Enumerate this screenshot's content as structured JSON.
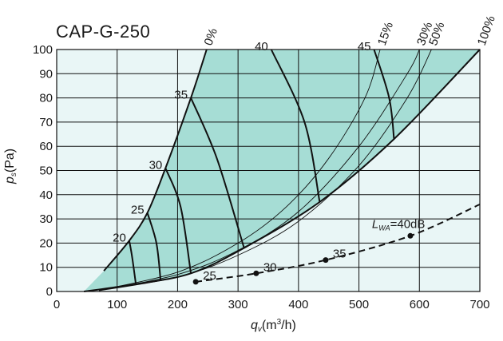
{
  "chart_data": {
    "type": "line",
    "title": "CAP-G-250",
    "xlabel": {
      "symbol": "q",
      "subscript": "v",
      "unit_pre": "(m",
      "unit_sup": "3",
      "unit_post": "/h)"
    },
    "ylabel": {
      "symbol": "p",
      "subscript": "s",
      "unit": "(Pa)"
    },
    "xlim": [
      0,
      700
    ],
    "ylim": [
      0,
      100
    ],
    "xticks": [
      "0",
      "100",
      "200",
      "300",
      "400",
      "500",
      "600",
      "700"
    ],
    "yticks": [
      "0",
      "10",
      "20",
      "30",
      "40",
      "50",
      "60",
      "70",
      "80",
      "90",
      "100"
    ],
    "grid": true,
    "colors": {
      "region": "#a6ddd5",
      "background": "#e9f6f6",
      "lines": "#111111"
    },
    "operating_region": {
      "upper_boundary": [
        [
          78,
          8.5
        ],
        [
          120,
          21
        ],
        [
          150,
          32.5
        ],
        [
          180,
          51
        ],
        [
          222,
          80
        ],
        [
          248,
          100
        ]
      ],
      "lower_boundary": [
        [
          45,
          0
        ],
        [
          80,
          1
        ],
        [
          130,
          3
        ],
        [
          170,
          4.8
        ],
        [
          222,
          7.5
        ],
        [
          310,
          18
        ],
        [
          435,
          37
        ],
        [
          558,
          63
        ],
        [
          700,
          100
        ]
      ]
    },
    "damper_curves": [
      {
        "label": "0%",
        "points": [
          [
            78,
            8.5
          ],
          [
            120,
            21
          ],
          [
            150,
            32.5
          ],
          [
            180,
            51
          ],
          [
            222,
            80
          ],
          [
            248,
            100
          ]
        ]
      },
      {
        "label": "15%",
        "points": [
          [
            70,
            0.5
          ],
          [
            200,
            8
          ],
          [
            300,
            20
          ],
          [
            380,
            35
          ],
          [
            450,
            55
          ],
          [
            510,
            80
          ],
          [
            535,
            100
          ]
        ]
      },
      {
        "label": "30%",
        "points": [
          [
            70,
            0.4
          ],
          [
            200,
            7
          ],
          [
            300,
            17
          ],
          [
            400,
            33
          ],
          [
            500,
            60
          ],
          [
            580,
            90
          ],
          [
            600,
            100
          ]
        ]
      },
      {
        "label": "50%",
        "points": [
          [
            70,
            0.3
          ],
          [
            200,
            6
          ],
          [
            300,
            15
          ],
          [
            400,
            29
          ],
          [
            500,
            52
          ],
          [
            580,
            80
          ],
          [
            620,
            100
          ]
        ]
      },
      {
        "label": "100%",
        "points": [
          [
            45,
            0
          ],
          [
            130,
            3
          ],
          [
            222,
            7.5
          ],
          [
            310,
            18
          ],
          [
            435,
            37
          ],
          [
            558,
            63
          ],
          [
            700,
            100
          ]
        ]
      }
    ],
    "noise_curves": [
      {
        "label": "20",
        "points": [
          [
            120,
            21
          ],
          [
            125,
            14
          ],
          [
            131,
            3
          ]
        ]
      },
      {
        "label": "25",
        "points": [
          [
            150,
            32.5
          ],
          [
            165,
            20
          ],
          [
            172,
            4.5
          ]
        ]
      },
      {
        "label": "30",
        "points": [
          [
            180,
            51
          ],
          [
            205,
            35
          ],
          [
            222,
            7.5
          ]
        ]
      },
      {
        "label": "35",
        "points": [
          [
            222,
            80
          ],
          [
            265,
            55
          ],
          [
            310,
            18
          ]
        ]
      },
      {
        "label": "40",
        "points": [
          [
            355,
            100
          ],
          [
            410,
            70
          ],
          [
            435,
            37
          ]
        ]
      },
      {
        "label": "45",
        "points": [
          [
            525,
            100
          ],
          [
            550,
            80
          ],
          [
            558,
            63
          ]
        ]
      }
    ],
    "lwa_line": {
      "label": "=40dB",
      "label_symbol": "L",
      "label_subscript": "WA",
      "points": [
        [
          230,
          4
        ],
        [
          330,
          7.5
        ],
        [
          445,
          13
        ],
        [
          585,
          23
        ],
        [
          700,
          36
        ]
      ],
      "markers": [
        {
          "label": "25",
          "x": 230,
          "y": 4
        },
        {
          "label": "30",
          "x": 330,
          "y": 7.5
        },
        {
          "label": "35",
          "x": 445,
          "y": 13
        },
        {
          "label": "",
          "x": 585,
          "y": 23
        }
      ]
    }
  }
}
